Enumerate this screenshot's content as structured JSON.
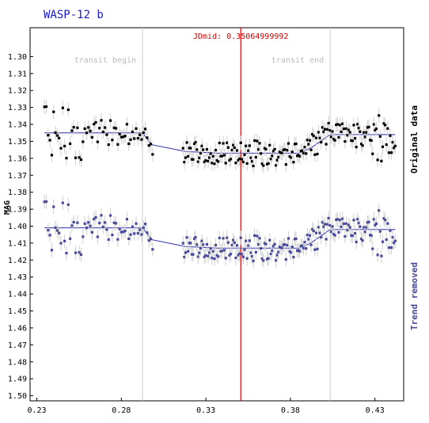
{
  "chart_data": {
    "type": "scatter",
    "title": "WASP-12 b",
    "ylabel": "MAG",
    "xlim": [
      0.226,
      0.447
    ],
    "ylim": [
      1.503,
      1.283
    ],
    "y_inverted": true,
    "x_ticks": [
      "0.23",
      "0.28",
      "0.33",
      "0.38",
      "0.43"
    ],
    "x_tick_values": [
      0.23,
      0.28,
      0.33,
      0.38,
      0.43
    ],
    "y_ticks": [
      "1.30",
      "1.31",
      "1.32",
      "1.33",
      "1.34",
      "1.35",
      "1.36",
      "1.37",
      "1.38",
      "1.39",
      "1.40",
      "1.41",
      "1.42",
      "1.43",
      "1.44",
      "1.45",
      "1.46",
      "1.47",
      "1.48",
      "1.49",
      "1.50"
    ],
    "y_tick_values": [
      1.3,
      1.31,
      1.32,
      1.33,
      1.34,
      1.35,
      1.36,
      1.37,
      1.38,
      1.39,
      1.4,
      1.41,
      1.42,
      1.43,
      1.44,
      1.45,
      1.46,
      1.47,
      1.48,
      1.49,
      1.5
    ],
    "grid": false,
    "markers": {
      "transit_begin": {
        "label": "transit begin",
        "x": 0.2925
      },
      "transit_end": {
        "label": "transit end",
        "x": 0.4035
      },
      "mid": {
        "label": "JDmid: 0.35064999992",
        "x": 0.35065
      }
    },
    "series": [
      {
        "name": "Original data",
        "color": "#000000",
        "model": {
          "x": [
            0.2345,
            0.2925,
            0.298,
            0.318,
            0.337,
            0.385,
            0.392,
            0.4035,
            0.442
          ],
          "y": [
            1.345,
            1.345,
            1.352,
            1.356,
            1.357,
            1.357,
            1.354,
            1.346,
            1.346
          ]
        }
      },
      {
        "name": "Trend removed",
        "color": "#4a4a9a",
        "model": {
          "x": [
            0.2345,
            0.2925,
            0.298,
            0.318,
            0.337,
            0.385,
            0.392,
            0.4035,
            0.442
          ],
          "y": [
            1.401,
            1.401,
            1.408,
            1.412,
            1.413,
            1.413,
            1.41,
            1.402,
            1.402
          ]
        }
      }
    ]
  }
}
